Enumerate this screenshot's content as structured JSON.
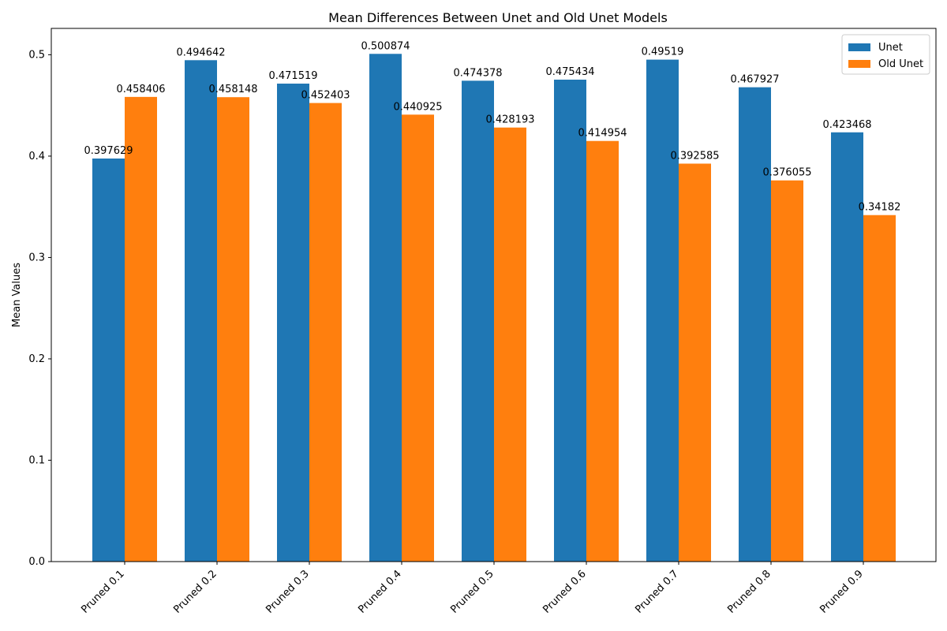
{
  "chart_data": {
    "type": "bar",
    "title": "Mean Differences Between Unet and Old Unet Models",
    "xlabel": "",
    "ylabel": "Mean Values",
    "categories": [
      "Pruned 0.1",
      "Pruned 0.2",
      "Pruned 0.3",
      "Pruned 0.4",
      "Pruned 0.5",
      "Pruned 0.6",
      "Pruned 0.7",
      "Pruned 0.8",
      "Pruned 0.9"
    ],
    "series": [
      {
        "name": "Unet",
        "color": "#1f77b4",
        "values": [
          0.397629,
          0.494642,
          0.471519,
          0.500874,
          0.474378,
          0.475434,
          0.49519,
          0.467927,
          0.423468
        ],
        "labels": [
          "0.397629",
          "0.494642",
          "0.471519",
          "0.500874",
          "0.474378",
          "0.475434",
          "0.49519",
          "0.467927",
          "0.423468"
        ]
      },
      {
        "name": "Old Unet",
        "color": "#ff7f0e",
        "values": [
          0.458406,
          0.458148,
          0.452403,
          0.440925,
          0.428193,
          0.414954,
          0.392585,
          0.376055,
          0.34182
        ],
        "labels": [
          "0.458406",
          "0.458148",
          "0.452403",
          "0.440925",
          "0.428193",
          "0.414954",
          "0.392585",
          "0.376055",
          "0.34182"
        ]
      }
    ],
    "ylim": [
      0,
      0.526
    ],
    "yticks": [
      0.0,
      0.1,
      0.2,
      0.3,
      0.4,
      0.5
    ],
    "ytick_labels": [
      "0.0",
      "0.1",
      "0.2",
      "0.3",
      "0.4",
      "0.5"
    ],
    "grid": false,
    "legend_position": "top-right"
  }
}
